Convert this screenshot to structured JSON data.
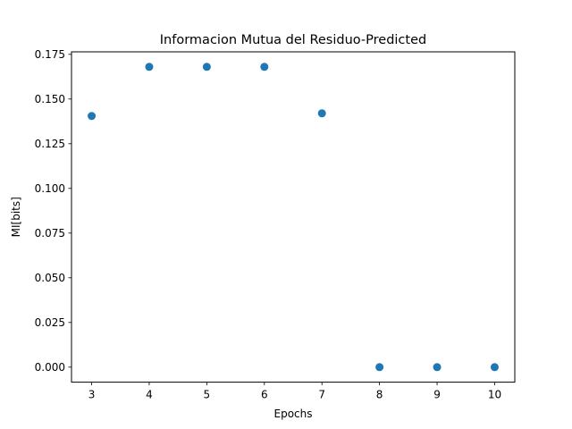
{
  "chart_data": {
    "type": "scatter",
    "title": "Informacion Mutua del Residuo-Predicted",
    "xlabel": "Epochs",
    "ylabel": "MI[bits]",
    "x": [
      3,
      4,
      5,
      6,
      7,
      8,
      9,
      10
    ],
    "y": [
      0.1405,
      0.168,
      0.168,
      0.168,
      0.142,
      0.0,
      0.0,
      0.0
    ],
    "xlim": [
      2.65,
      10.35
    ],
    "ylim": [
      -0.0084,
      0.1764
    ],
    "xticks": [
      3,
      4,
      5,
      6,
      7,
      8,
      9,
      10
    ],
    "xtick_labels": [
      "3",
      "4",
      "5",
      "6",
      "7",
      "8",
      "9",
      "10"
    ],
    "yticks": [
      0.0,
      0.025,
      0.05,
      0.075,
      0.1,
      0.125,
      0.15,
      0.175
    ],
    "ytick_labels": [
      "0.000",
      "0.025",
      "0.050",
      "0.075",
      "0.100",
      "0.125",
      "0.150",
      "0.175"
    ],
    "grid": false,
    "marker_color": "#1f77b4"
  }
}
